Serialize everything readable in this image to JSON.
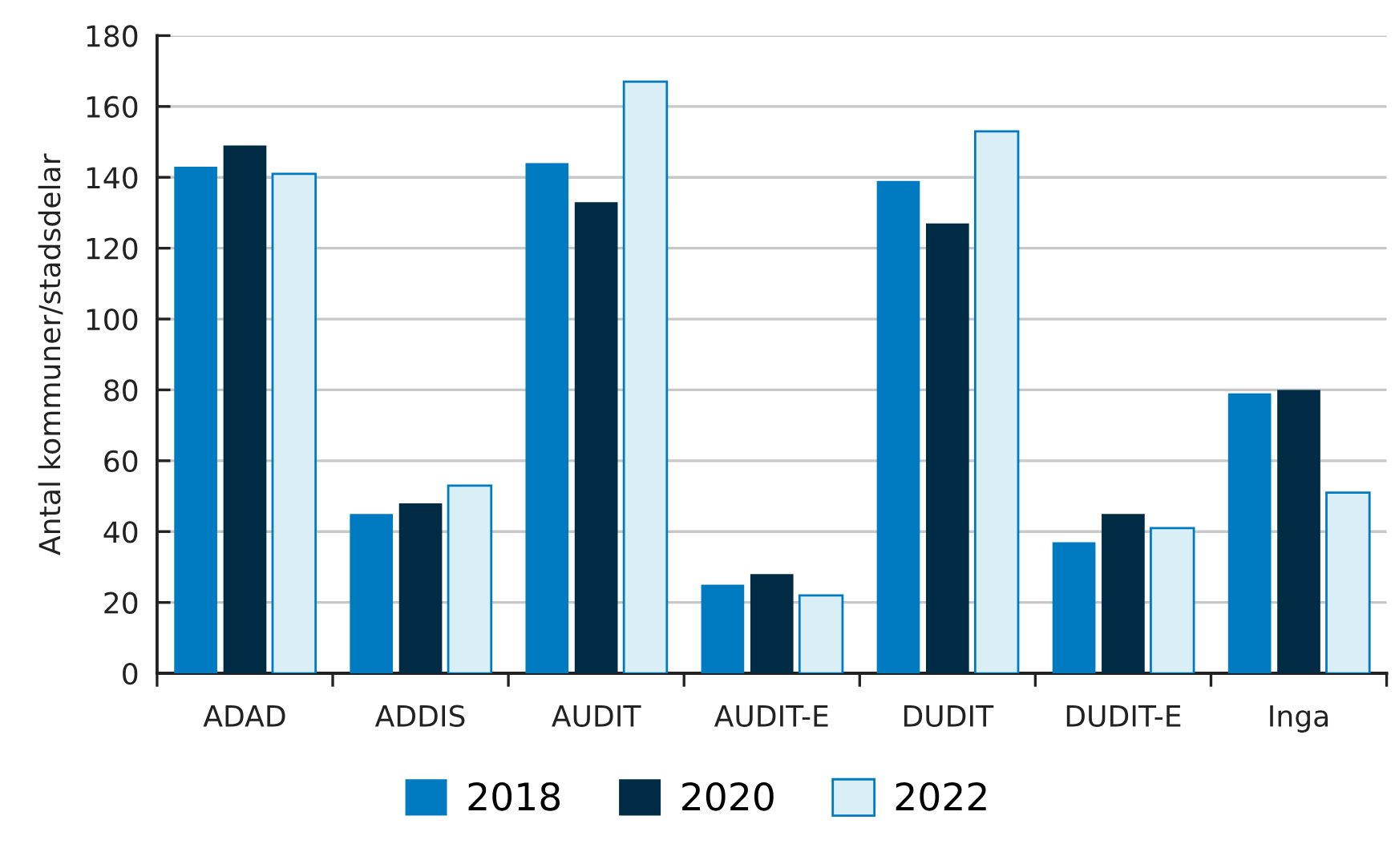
{
  "chart_data": {
    "type": "bar",
    "ylabel": "Antal kommuner/stadsdelar",
    "categories": [
      "ADAD",
      "ADDIS",
      "AUDIT",
      "AUDIT-E",
      "DUDIT",
      "DUDIT-E",
      "Inga"
    ],
    "series": [
      {
        "name": "2018",
        "color": "#007ac0",
        "values": [
          143,
          45,
          144,
          25,
          139,
          37,
          79
        ]
      },
      {
        "name": "2020",
        "color": "#002b45",
        "values": [
          149,
          48,
          133,
          28,
          127,
          45,
          80
        ]
      },
      {
        "name": "2022",
        "color": "#daeef6",
        "values": [
          141,
          53,
          167,
          22,
          153,
          41,
          51
        ]
      }
    ],
    "ylim": [
      0,
      180
    ],
    "yticks": [
      0,
      20,
      40,
      60,
      80,
      100,
      120,
      140,
      160,
      180
    ],
    "grid": "y",
    "legend": "bottom"
  }
}
